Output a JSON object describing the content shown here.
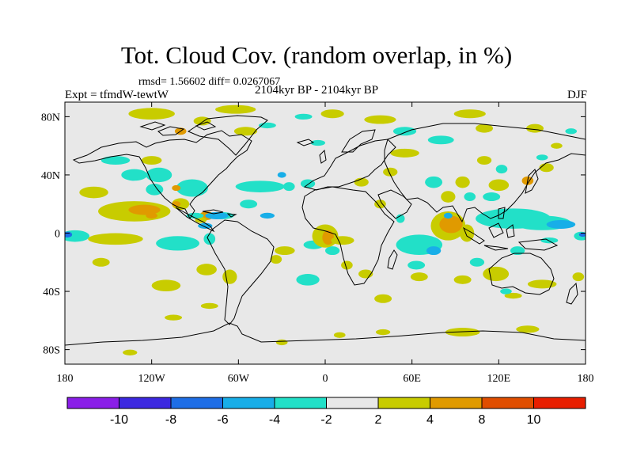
{
  "title": "Tot. Cloud Cov. (random overlap, in %)",
  "stats": "rmsd= 1.56602 diff= 0.0267067",
  "experiment": "Expt = tfmdW-tewtW",
  "period": "2104kyr BP - 2104kyr BP",
  "season": "DJF",
  "map": {
    "lon_range": [
      -180,
      180
    ],
    "lat_range": [
      -90,
      90
    ],
    "x_ticks": [
      {
        "lon": -180,
        "label": "180"
      },
      {
        "lon": -120,
        "label": "120W"
      },
      {
        "lon": -60,
        "label": "60W"
      },
      {
        "lon": 0,
        "label": "0"
      },
      {
        "lon": 60,
        "label": "60E"
      },
      {
        "lon": 120,
        "label": "120E"
      },
      {
        "lon": 180,
        "label": "180"
      }
    ],
    "y_ticks": [
      {
        "lat": 80,
        "label": "80N"
      },
      {
        "lat": 40,
        "label": "40N"
      },
      {
        "lat": 0,
        "label": "0"
      },
      {
        "lat": -40,
        "label": "40S"
      },
      {
        "lat": -80,
        "label": "80S"
      }
    ],
    "background_color": "#e8e8e8",
    "coastline_color": "#000000"
  },
  "colorbar": {
    "colors": [
      "#8a1ee8",
      "#3c28e0",
      "#1e6ee6",
      "#18aee8",
      "#22e0c8",
      "#e8e8e8",
      "#c8cc00",
      "#e09a00",
      "#e04e00",
      "#e81e00"
    ],
    "labels": [
      "-10",
      "-8",
      "-6",
      "-4",
      "-2",
      "2",
      "4",
      "8",
      "10"
    ]
  },
  "anomalies": [
    {
      "lon": -160,
      "lat": 28,
      "rx": 10,
      "ry": 4,
      "level": 6
    },
    {
      "lon": -132,
      "lat": 15,
      "rx": 25,
      "ry": 7,
      "level": 6
    },
    {
      "lon": -125,
      "lat": 16,
      "rx": 11,
      "ry": 3.5,
      "level": 7
    },
    {
      "lon": -115,
      "lat": 40,
      "rx": 9,
      "ry": 5,
      "level": 4
    },
    {
      "lon": -120,
      "lat": 50,
      "rx": 7,
      "ry": 3,
      "level": 6
    },
    {
      "lon": -92,
      "lat": 31,
      "rx": 11,
      "ry": 6,
      "level": 4
    },
    {
      "lon": -100,
      "lat": 20,
      "rx": 6,
      "ry": 4,
      "level": 6
    },
    {
      "lon": -103,
      "lat": 20,
      "rx": 3,
      "ry": 2,
      "level": 7
    },
    {
      "lon": -82,
      "lat": 12,
      "rx": 5,
      "ry": 3,
      "level": 7
    },
    {
      "lon": -72,
      "lat": 12,
      "rx": 9,
      "ry": 2.5,
      "level": 4
    },
    {
      "lon": -45,
      "lat": 32,
      "rx": 17,
      "ry": 4,
      "level": 4
    },
    {
      "lon": -12,
      "lat": 34,
      "rx": 5,
      "ry": 3,
      "level": 4
    },
    {
      "lon": -173,
      "lat": -2,
      "rx": 10,
      "ry": 4,
      "level": 4
    },
    {
      "lon": -178,
      "lat": -1,
      "rx": 3,
      "ry": 2,
      "level": 2
    },
    {
      "lon": -145,
      "lat": -4,
      "rx": 19,
      "ry": 4,
      "level": 6
    },
    {
      "lon": -102,
      "lat": -7,
      "rx": 15,
      "ry": 5,
      "level": 4
    },
    {
      "lon": -80,
      "lat": -4,
      "rx": 4,
      "ry": 4,
      "level": 4
    },
    {
      "lon": -155,
      "lat": -20,
      "rx": 6,
      "ry": 3,
      "level": 6
    },
    {
      "lon": -110,
      "lat": -36,
      "rx": 10,
      "ry": 4,
      "level": 6
    },
    {
      "lon": -82,
      "lat": -25,
      "rx": 7,
      "ry": 4,
      "level": 6
    },
    {
      "lon": -66,
      "lat": -30,
      "rx": 5,
      "ry": 5,
      "level": 6
    },
    {
      "lon": -28,
      "lat": -12,
      "rx": 7,
      "ry": 3,
      "level": 6
    },
    {
      "lon": -8,
      "lat": -8,
      "rx": 7,
      "ry": 3,
      "level": 4
    },
    {
      "lon": 5,
      "lat": -12,
      "rx": 5,
      "ry": 3,
      "level": 4
    },
    {
      "lon": -12,
      "lat": -32,
      "rx": 8,
      "ry": 4,
      "level": 4
    },
    {
      "lon": -34,
      "lat": -18,
      "rx": 4,
      "ry": 3,
      "level": 6
    },
    {
      "lon": -120,
      "lat": 82,
      "rx": 16,
      "ry": 4,
      "level": 6
    },
    {
      "lon": -85,
      "lat": 77,
      "rx": 6,
      "ry": 3,
      "level": 6
    },
    {
      "lon": -62,
      "lat": 85,
      "rx": 14,
      "ry": 3,
      "level": 6
    },
    {
      "lon": -55,
      "lat": 70,
      "rx": 8,
      "ry": 3,
      "level": 6
    },
    {
      "lon": -100,
      "lat": 70,
      "rx": 4,
      "ry": 2.5,
      "level": 7
    },
    {
      "lon": -40,
      "lat": 74,
      "rx": 6,
      "ry": 2,
      "level": 4
    },
    {
      "lon": -15,
      "lat": 80,
      "rx": 6,
      "ry": 2,
      "level": 4
    },
    {
      "lon": 5,
      "lat": 82,
      "rx": 8,
      "ry": 3,
      "level": 6
    },
    {
      "lon": 38,
      "lat": 78,
      "rx": 11,
      "ry": 3,
      "level": 6
    },
    {
      "lon": 55,
      "lat": 70,
      "rx": 8,
      "ry": 3,
      "level": 4
    },
    {
      "lon": 55,
      "lat": 55,
      "rx": 10,
      "ry": 3,
      "level": 6
    },
    {
      "lon": 100,
      "lat": 82,
      "rx": 11,
      "ry": 3,
      "level": 6
    },
    {
      "lon": 80,
      "lat": 64,
      "rx": 9,
      "ry": 3,
      "level": 4
    },
    {
      "lon": 110,
      "lat": 72,
      "rx": 6,
      "ry": 3,
      "level": 6
    },
    {
      "lon": 145,
      "lat": 72,
      "rx": 6,
      "ry": 3,
      "level": 6
    },
    {
      "lon": 160,
      "lat": 60,
      "rx": 4,
      "ry": 2,
      "level": 6
    },
    {
      "lon": 45,
      "lat": 42,
      "rx": 5,
      "ry": 3,
      "level": 6
    },
    {
      "lon": 38,
      "lat": 20,
      "rx": 4,
      "ry": 3,
      "level": 6
    },
    {
      "lon": 85,
      "lat": 25,
      "rx": 5,
      "ry": 4,
      "level": 6
    },
    {
      "lon": 95,
      "lat": 35,
      "rx": 5,
      "ry": 4,
      "level": 6
    },
    {
      "lon": 120,
      "lat": 33,
      "rx": 7,
      "ry": 4,
      "level": 6
    },
    {
      "lon": 140,
      "lat": 36,
      "rx": 4,
      "ry": 3,
      "level": 7
    },
    {
      "lon": 153,
      "lat": 45,
      "rx": 5,
      "ry": 3,
      "level": 6
    },
    {
      "lon": 110,
      "lat": 50,
      "rx": 5,
      "ry": 3,
      "level": 6
    },
    {
      "lon": 25,
      "lat": 35,
      "rx": 5,
      "ry": 3,
      "level": 6
    },
    {
      "lon": 0,
      "lat": -2,
      "rx": 9,
      "ry": 8,
      "level": 6
    },
    {
      "lon": 2,
      "lat": -3,
      "rx": 4,
      "ry": 5,
      "level": 7
    },
    {
      "lon": 12,
      "lat": -5,
      "rx": 8,
      "ry": 3,
      "level": 6
    },
    {
      "lon": 15,
      "lat": -22,
      "rx": 4,
      "ry": 3,
      "level": 6
    },
    {
      "lon": 28,
      "lat": -28,
      "rx": 5,
      "ry": 3,
      "level": 6
    },
    {
      "lon": 40,
      "lat": -45,
      "rx": 6,
      "ry": 3,
      "level": 6
    },
    {
      "lon": 85,
      "lat": 5,
      "rx": 12,
      "ry": 10,
      "level": 6
    },
    {
      "lon": 87,
      "lat": 6,
      "rx": 8,
      "ry": 6,
      "level": 7
    },
    {
      "lon": 98,
      "lat": 0,
      "rx": 5,
      "ry": 6,
      "level": 6
    },
    {
      "lon": 62,
      "lat": -10,
      "rx": 9,
      "ry": 4,
      "level": 4
    },
    {
      "lon": 65,
      "lat": -30,
      "rx": 6,
      "ry": 3,
      "level": 6
    },
    {
      "lon": 95,
      "lat": -32,
      "rx": 6,
      "ry": 3,
      "level": 6
    },
    {
      "lon": 118,
      "lat": -28,
      "rx": 9,
      "ry": 5,
      "level": 6
    },
    {
      "lon": 150,
      "lat": -35,
      "rx": 10,
      "ry": 3,
      "level": 6
    },
    {
      "lon": 175,
      "lat": -30,
      "rx": 4,
      "ry": 3,
      "level": 6
    },
    {
      "lon": 130,
      "lat": -43,
      "rx": 6,
      "ry": 2,
      "level": 6
    },
    {
      "lon": 95,
      "lat": -68,
      "rx": 12,
      "ry": 3,
      "level": 6
    },
    {
      "lon": 140,
      "lat": -66,
      "rx": 8,
      "ry": 2.5,
      "level": 6
    },
    {
      "lon": 40,
      "lat": -68,
      "rx": 5,
      "ry": 2,
      "level": 6
    },
    {
      "lon": 10,
      "lat": -70,
      "rx": 4,
      "ry": 2,
      "level": 6
    },
    {
      "lon": -30,
      "lat": -75,
      "rx": 4,
      "ry": 2,
      "level": 6
    },
    {
      "lon": -135,
      "lat": -82,
      "rx": 5,
      "ry": 2,
      "level": 6
    },
    {
      "lon": -105,
      "lat": -58,
      "rx": 6,
      "ry": 2,
      "level": 6
    },
    {
      "lon": -80,
      "lat": -50,
      "rx": 6,
      "ry": 2,
      "level": 6
    },
    {
      "lon": -120,
      "lat": 12,
      "rx": 4,
      "ry": 2,
      "level": 7
    },
    {
      "lon": -103,
      "lat": 31,
      "rx": 3,
      "ry": 2,
      "level": 7
    },
    {
      "lon": -133,
      "lat": 38,
      "rx": 4,
      "ry": 2,
      "level": 3
    },
    {
      "lon": -40,
      "lat": 12,
      "rx": 5,
      "ry": 2,
      "level": 3
    },
    {
      "lon": -118,
      "lat": 30,
      "rx": 6,
      "ry": 4,
      "level": 4
    },
    {
      "lon": -86,
      "lat": 9,
      "rx": 4,
      "ry": 2,
      "level": 6
    },
    {
      "lon": -83,
      "lat": 5,
      "rx": 5,
      "ry": 2,
      "level": 3
    },
    {
      "lon": -132,
      "lat": 40,
      "rx": 9,
      "ry": 4,
      "level": 4
    },
    {
      "lon": -90,
      "lat": 12,
      "rx": 6,
      "ry": 2,
      "level": 4
    },
    {
      "lon": -75,
      "lat": 12,
      "rx": 8,
      "ry": 2.5,
      "level": 3
    },
    {
      "lon": -53,
      "lat": 20,
      "rx": 6,
      "ry": 3,
      "level": 4
    },
    {
      "lon": -25,
      "lat": 32,
      "rx": 4,
      "ry": 3,
      "level": 4
    },
    {
      "lon": -145,
      "lat": 50,
      "rx": 10,
      "ry": 3,
      "level": 4
    },
    {
      "lon": -30,
      "lat": 40,
      "rx": 3,
      "ry": 2,
      "level": 3
    },
    {
      "lon": 130,
      "lat": 10,
      "rx": 26,
      "ry": 7,
      "level": 4
    },
    {
      "lon": 150,
      "lat": 7,
      "rx": 20,
      "ry": 5,
      "level": 4
    },
    {
      "lon": 163,
      "lat": 6,
      "rx": 10,
      "ry": 3,
      "level": 3
    },
    {
      "lon": 177,
      "lat": -2,
      "rx": 5,
      "ry": 3,
      "level": 4
    },
    {
      "lon": 178,
      "lat": -1,
      "rx": 2.5,
      "ry": 1.5,
      "level": 2
    },
    {
      "lon": 115,
      "lat": 25,
      "rx": 6,
      "ry": 3,
      "level": 4
    },
    {
      "lon": 65,
      "lat": -8,
      "rx": 16,
      "ry": 7,
      "level": 4
    },
    {
      "lon": 75,
      "lat": -12,
      "rx": 5,
      "ry": 3,
      "level": 3
    },
    {
      "lon": 63,
      "lat": -22,
      "rx": 6,
      "ry": 3,
      "level": 4
    },
    {
      "lon": 105,
      "lat": -20,
      "rx": 5,
      "ry": 3,
      "level": 4
    },
    {
      "lon": 133,
      "lat": -12,
      "rx": 5,
      "ry": 3,
      "level": 4
    },
    {
      "lon": 75,
      "lat": 35,
      "rx": 6,
      "ry": 4,
      "level": 4
    },
    {
      "lon": 100,
      "lat": 25,
      "rx": 4,
      "ry": 3,
      "level": 4
    },
    {
      "lon": 122,
      "lat": 44,
      "rx": 4,
      "ry": 3,
      "level": 4
    },
    {
      "lon": 150,
      "lat": 52,
      "rx": 4,
      "ry": 2,
      "level": 4
    },
    {
      "lon": 52,
      "lat": 10,
      "rx": 3,
      "ry": 3,
      "level": 4
    },
    {
      "lon": 85,
      "lat": 12,
      "rx": 3,
      "ry": 2,
      "level": 3
    },
    {
      "lon": 155,
      "lat": -5,
      "rx": 6,
      "ry": 2,
      "level": 4
    },
    {
      "lon": 125,
      "lat": -40,
      "rx": 4,
      "ry": 2,
      "level": 4
    },
    {
      "lon": -5,
      "lat": 62,
      "rx": 5,
      "ry": 2,
      "level": 4
    },
    {
      "lon": 170,
      "lat": 70,
      "rx": 4,
      "ry": 2,
      "level": 4
    }
  ]
}
